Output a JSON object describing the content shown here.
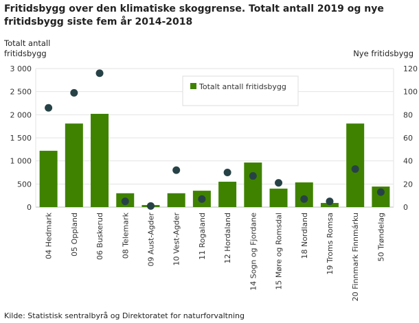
{
  "chart_data": {
    "type": "bar",
    "title": "Fritidsbygg over den klimatiske skoggrense. Totalt antall 2019 og nye fritidsbygg siste fem år 2014-2018",
    "ylabel": "Totalt antall fritidsbygg",
    "y2label": "Nye fritidsbygg",
    "ylim": [
      0,
      3000
    ],
    "y2lim": [
      0,
      120
    ],
    "yticks": [
      "0",
      "500",
      "1 000",
      "1 500",
      "2 000",
      "2 500",
      "3 000"
    ],
    "y2ticks": [
      "0",
      "20",
      "40",
      "60",
      "80",
      "100",
      "120"
    ],
    "grid": true,
    "legend_position": "top-center",
    "categories": [
      "04 Hedmark",
      "05 Oppland",
      "06 Buskerud",
      "08 Telemark",
      "09 Aust-Agder",
      "10 Vest-Agder",
      "11 Rogaland",
      "12 Hordaland",
      "14 Sogn og Fjordane",
      "15 Møre og Romsdal",
      "18 Nordland",
      "19 Troms Romsa",
      "20 Finnmark Finnmárku",
      "50 Trøndelag"
    ],
    "series": [
      {
        "name": "Totalt antall fritidsbygg",
        "type": "bar",
        "axis": "left",
        "color": "#3f8200",
        "values": [
          1220,
          1810,
          2020,
          300,
          45,
          300,
          355,
          550,
          965,
          400,
          535,
          90,
          1810,
          445
        ]
      },
      {
        "type": "scatter",
        "axis": "right",
        "color": "#274247",
        "values": [
          86,
          99,
          116,
          5,
          1,
          32,
          7,
          30,
          27,
          21,
          7,
          5,
          33,
          13
        ]
      }
    ]
  },
  "source": "Kilde: Statistisk sentralbyrå og Direktoratet for naturforvaltning"
}
